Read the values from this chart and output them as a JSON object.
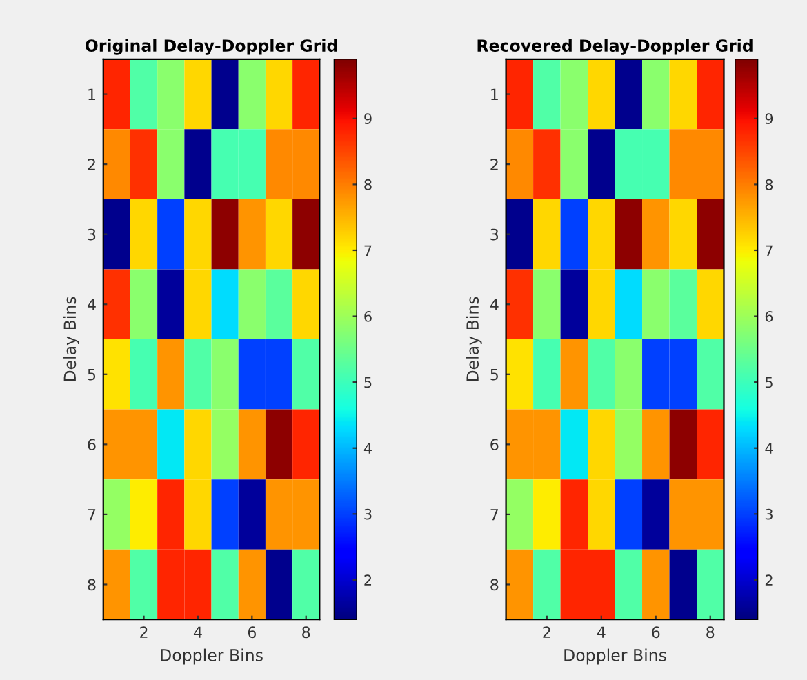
{
  "chart_data": [
    {
      "type": "heatmap",
      "title": "Original Delay-Doppler Grid",
      "xlabel": "Doppler Bins",
      "ylabel": "Delay Bins",
      "categories": [
        null,
        "2",
        null,
        "4",
        null,
        "6",
        null,
        "8"
      ],
      "y_categories": [
        "1",
        "2",
        "3",
        "4",
        "5",
        "6",
        "7",
        "8"
      ],
      "cells": [
        [
          8.8,
          5.2,
          5.8,
          7.2,
          1.5,
          5.8,
          7.2,
          8.8
        ],
        [
          7.9,
          8.7,
          5.8,
          1.5,
          5.1,
          5.1,
          7.9,
          7.9
        ],
        [
          1.5,
          7.2,
          3.0,
          7.2,
          9.8,
          7.8,
          7.2,
          9.8
        ],
        [
          8.7,
          5.8,
          1.6,
          7.2,
          4.3,
          5.8,
          5.3,
          7.2
        ],
        [
          7.1,
          5.1,
          7.8,
          5.2,
          5.8,
          3.0,
          3.0,
          5.2
        ],
        [
          7.8,
          7.8,
          4.4,
          7.2,
          5.9,
          7.8,
          9.8,
          8.8
        ],
        [
          5.9,
          7.0,
          8.8,
          7.2,
          3.0,
          1.6,
          7.8,
          7.8
        ],
        [
          7.8,
          5.2,
          8.8,
          8.8,
          5.2,
          7.8,
          1.5,
          5.2
        ]
      ],
      "clim": [
        1.4,
        9.9
      ],
      "cticks": [
        2,
        3,
        4,
        5,
        6,
        7,
        8,
        9
      ]
    },
    {
      "type": "heatmap",
      "title": "Recovered Delay-Doppler Grid",
      "xlabel": "Doppler Bins",
      "ylabel": "Delay Bins",
      "categories": [
        null,
        "2",
        null,
        "4",
        null,
        "6",
        null,
        "8"
      ],
      "y_categories": [
        "1",
        "2",
        "3",
        "4",
        "5",
        "6",
        "7",
        "8"
      ],
      "cells": [
        [
          8.8,
          5.2,
          5.8,
          7.2,
          1.5,
          5.8,
          7.2,
          8.8
        ],
        [
          7.9,
          8.7,
          5.8,
          1.5,
          5.1,
          5.1,
          7.9,
          7.9
        ],
        [
          1.5,
          7.2,
          3.0,
          7.2,
          9.8,
          7.8,
          7.2,
          9.8
        ],
        [
          8.7,
          5.8,
          1.6,
          7.2,
          4.3,
          5.8,
          5.3,
          7.2
        ],
        [
          7.1,
          5.1,
          7.8,
          5.2,
          5.8,
          3.0,
          3.0,
          5.2
        ],
        [
          7.8,
          7.8,
          4.4,
          7.2,
          5.9,
          7.8,
          9.8,
          8.8
        ],
        [
          5.9,
          7.0,
          8.8,
          7.2,
          3.0,
          1.6,
          7.8,
          7.8
        ],
        [
          7.8,
          5.2,
          8.8,
          8.8,
          5.2,
          7.8,
          1.5,
          5.2
        ]
      ],
      "clim": [
        1.4,
        9.9
      ],
      "cticks": [
        2,
        3,
        4,
        5,
        6,
        7,
        8,
        9
      ]
    }
  ]
}
